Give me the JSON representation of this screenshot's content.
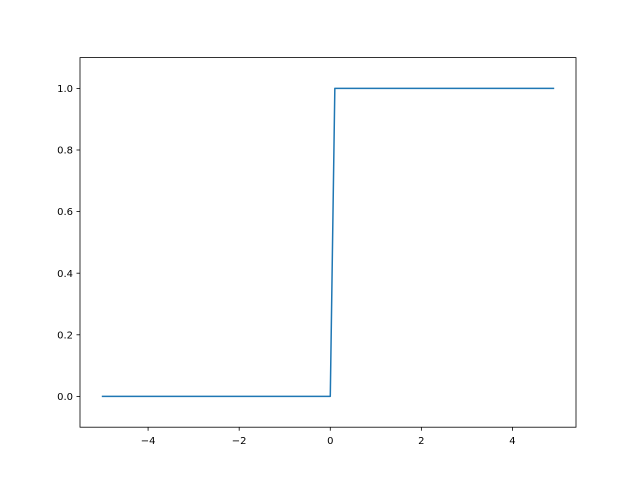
{
  "chart_data": {
    "type": "line",
    "title": "",
    "xlabel": "",
    "ylabel": "",
    "xlim": [
      -5.495,
      5.395
    ],
    "ylim": [
      -0.1,
      1.1
    ],
    "grid": false,
    "x_ticks": [
      -4,
      -2,
      0,
      2,
      4
    ],
    "x_tick_labels": [
      "−4",
      "−2",
      "0",
      "2",
      "4"
    ],
    "y_ticks": [
      0.0,
      0.2,
      0.4,
      0.6,
      0.8,
      1.0
    ],
    "y_tick_labels": [
      "0.0",
      "0.2",
      "0.4",
      "0.6",
      "0.8",
      "1.0"
    ],
    "series": [
      {
        "color": "#1f77b4",
        "x": [
          -5.0,
          -4.9,
          -4.8,
          -4.7,
          -4.6,
          -4.5,
          -4.4,
          -4.3,
          -4.2,
          -4.1,
          -4.0,
          -3.9,
          -3.8,
          -3.7,
          -3.6,
          -3.5,
          -3.4,
          -3.3,
          -3.2,
          -3.1,
          -3.0,
          -2.9,
          -2.8,
          -2.7,
          -2.6,
          -2.5,
          -2.4,
          -2.3,
          -2.2,
          -2.1,
          -2.0,
          -1.9,
          -1.8,
          -1.7,
          -1.6,
          -1.5,
          -1.4,
          -1.3,
          -1.2,
          -1.1,
          -1.0,
          -0.9,
          -0.8,
          -0.7,
          -0.6,
          -0.5,
          -0.4,
          -0.3,
          -0.2,
          -0.1,
          0.0,
          0.1,
          0.2,
          0.3,
          0.4,
          0.5,
          0.6,
          0.7,
          0.8,
          0.9,
          1.0,
          1.1,
          1.2,
          1.3,
          1.4,
          1.5,
          1.6,
          1.7,
          1.8,
          1.9,
          2.0,
          2.1,
          2.2,
          2.3,
          2.4,
          2.5,
          2.6,
          2.7,
          2.8,
          2.9,
          3.0,
          3.1,
          3.2,
          3.3,
          3.4,
          3.5,
          3.6,
          3.7,
          3.8,
          3.9,
          4.0,
          4.1,
          4.2,
          4.3,
          4.4,
          4.5,
          4.6,
          4.7,
          4.8,
          4.9
        ],
        "y": [
          0,
          0,
          0,
          0,
          0,
          0,
          0,
          0,
          0,
          0,
          0,
          0,
          0,
          0,
          0,
          0,
          0,
          0,
          0,
          0,
          0,
          0,
          0,
          0,
          0,
          0,
          0,
          0,
          0,
          0,
          0,
          0,
          0,
          0,
          0,
          0,
          0,
          0,
          0,
          0,
          0,
          0,
          0,
          0,
          0,
          0,
          0,
          0,
          0,
          0,
          0,
          1,
          1,
          1,
          1,
          1,
          1,
          1,
          1,
          1,
          1,
          1,
          1,
          1,
          1,
          1,
          1,
          1,
          1,
          1,
          1,
          1,
          1,
          1,
          1,
          1,
          1,
          1,
          1,
          1,
          1,
          1,
          1,
          1,
          1,
          1,
          1,
          1,
          1,
          1,
          1,
          1,
          1,
          1,
          1,
          1,
          1,
          1,
          1,
          1
        ]
      }
    ]
  }
}
